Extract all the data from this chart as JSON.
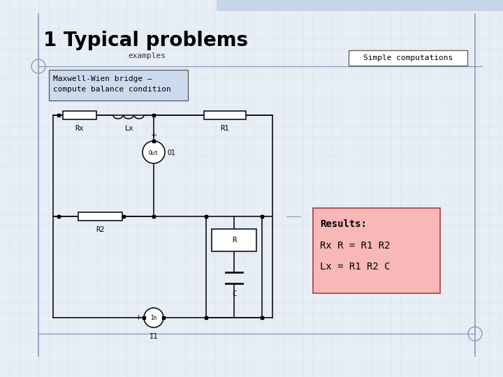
{
  "title": "1 Typical problems",
  "subtitle": "examples",
  "simple_computations_label": "Simple computations",
  "maxwell_label": "Maxwell-Wien bridge –\ncompute balance condition",
  "results_label": "Results:",
  "result_line1": "Rx R = R1 R2",
  "result_line2": "Lx = R1 R2 C",
  "bg_color": "#e8eef5",
  "header_band_color": "#c5d5ea",
  "title_fontsize": 20,
  "subtitle_fontsize": 8,
  "sc_fontsize": 8,
  "maxwell_fontsize": 8,
  "circuit_color": "#111111",
  "maxwell_box_facecolor": "#ccdaee",
  "maxwell_box_edge": "#555555",
  "results_box_facecolor": "#f8b8b8",
  "results_box_edge": "#bb4444",
  "sc_box_facecolor": "#ffffff",
  "sc_box_edge": "#555555",
  "grid_color": "#b8c8dc",
  "slide_line_color": "#8899bb",
  "circ_color": "#8899bb"
}
